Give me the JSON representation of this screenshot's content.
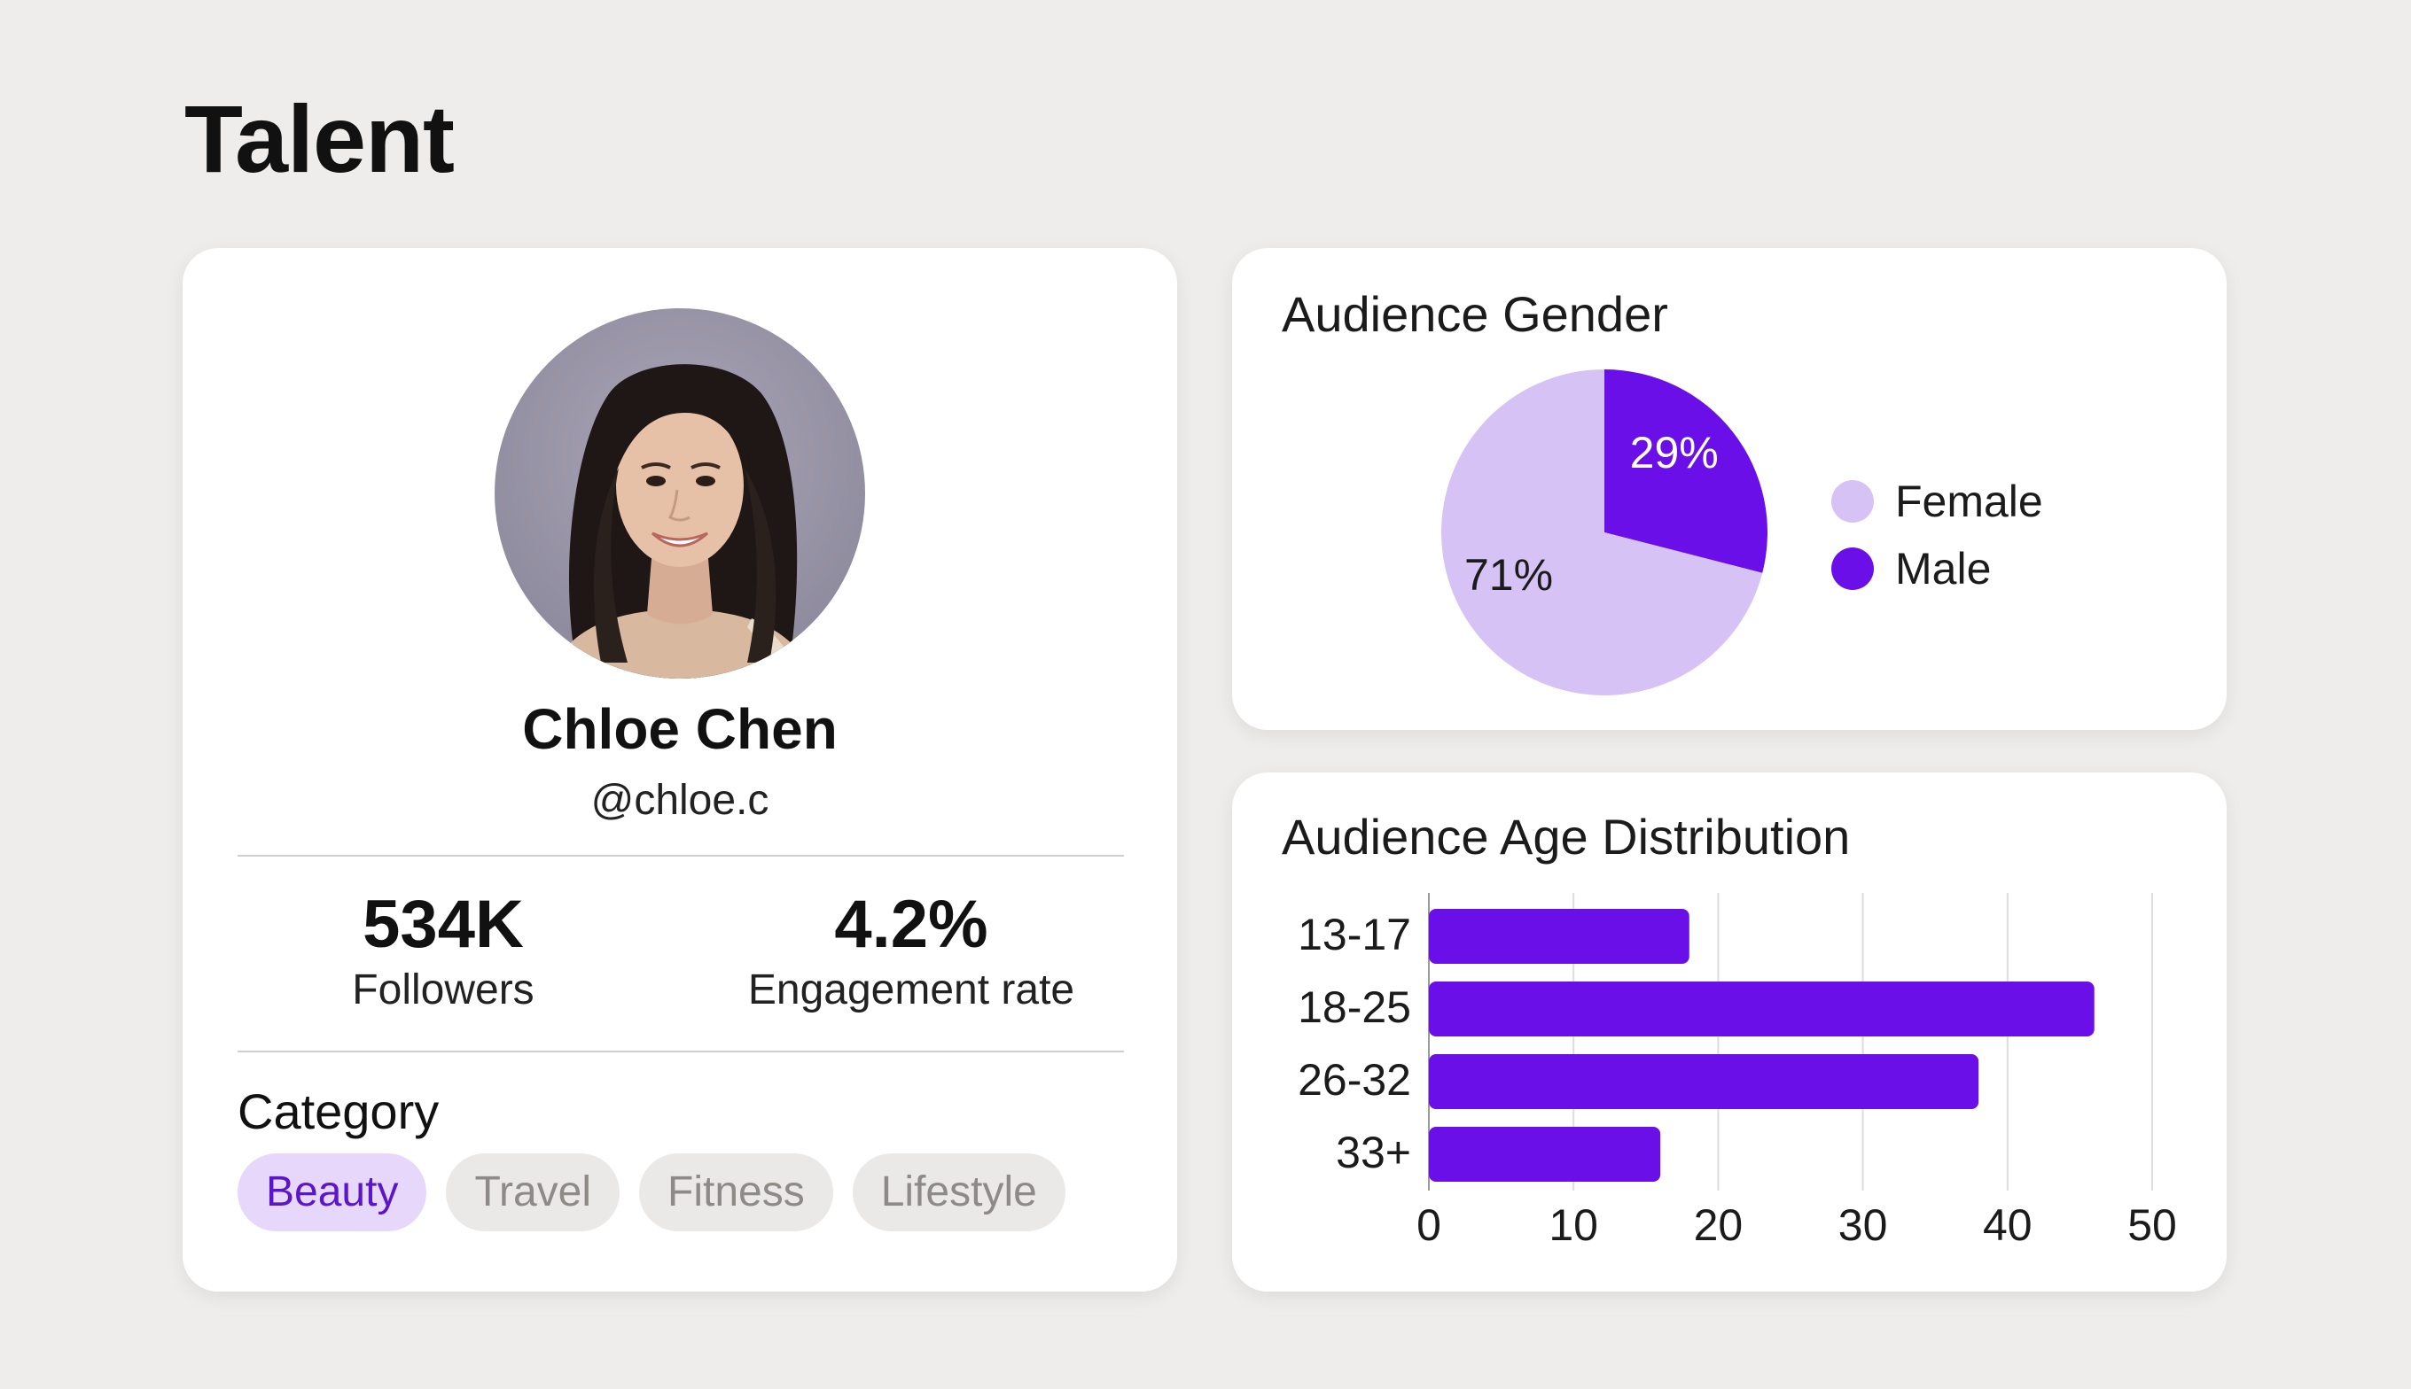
{
  "page": {
    "title": "Talent"
  },
  "profile": {
    "name": "Chloe Chen",
    "handle": "@chloe.c",
    "stats": [
      {
        "value": "534K",
        "label": "Followers"
      },
      {
        "value": "4.2%",
        "label": "Engagement rate"
      }
    ],
    "category_heading": "Category",
    "categories": [
      {
        "label": "Beauty",
        "selected": true
      },
      {
        "label": "Travel",
        "selected": false
      },
      {
        "label": "Fitness",
        "selected": false
      },
      {
        "label": "Lifestyle",
        "selected": false
      }
    ]
  },
  "colors": {
    "accent": "#6a0fe8",
    "accent_light": "#d7c2f6",
    "chip_active_bg": "#e7d8fb",
    "chip_bg": "#ebe9e7"
  },
  "chart_data": [
    {
      "type": "pie",
      "title": "Audience Gender",
      "slices": [
        {
          "label": "Female",
          "value": 71,
          "display": "71%",
          "color": "#d7c2f6"
        },
        {
          "label": "Male",
          "value": 29,
          "display": "29%",
          "color": "#6a0fe8"
        }
      ],
      "legend": "right"
    },
    {
      "type": "bar",
      "orientation": "horizontal",
      "title": "Audience Age Distribution",
      "categories": [
        "13-17",
        "18-25",
        "26-32",
        "33+"
      ],
      "values": [
        18,
        46,
        38,
        16
      ],
      "xlim": [
        0,
        50
      ],
      "xticks": [
        0,
        10,
        20,
        30,
        40,
        50
      ],
      "grid": "vertical",
      "color": "#6a0fe8"
    }
  ]
}
